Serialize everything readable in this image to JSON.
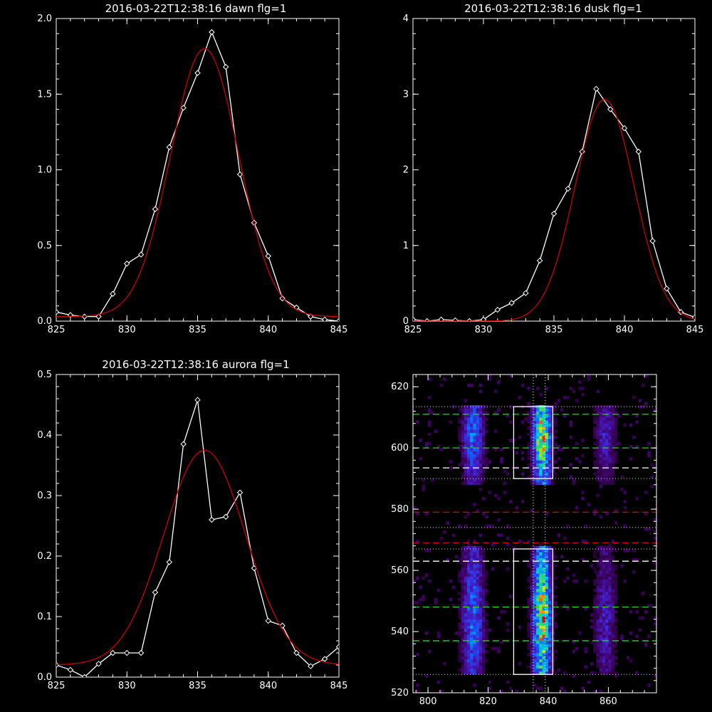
{
  "chart_data": [
    {
      "type": "line",
      "title": "2016-03-22T12:38:16 dawn flg=1",
      "xlim": [
        825,
        845
      ],
      "ylim": [
        0,
        2.0
      ],
      "xticks": [
        "825",
        "830",
        "835",
        "840",
        "845"
      ],
      "yticks": [
        "0.0",
        "0.5",
        "1.0",
        "1.5",
        "2.0"
      ],
      "grid": false,
      "series": [
        {
          "color": "#ffffff",
          "marker": "diamond",
          "x": [
            825,
            826,
            827,
            828,
            829,
            830,
            831,
            832,
            833,
            834,
            835,
            836,
            837,
            838,
            839,
            840,
            841,
            842,
            843,
            844,
            845
          ],
          "y": [
            0.06,
            0.04,
            0.03,
            0.03,
            0.18,
            0.38,
            0.44,
            0.74,
            1.15,
            1.41,
            1.64,
            1.91,
            1.68,
            0.97,
            0.65,
            0.43,
            0.15,
            0.09,
            0.03,
            0.01,
            0.0
          ]
        },
        {
          "color": "#cc0000",
          "fit": "gaussian",
          "center": 835.5,
          "sigma": 2.4,
          "amplitude": 1.77,
          "offset": 0.03
        }
      ]
    },
    {
      "type": "line",
      "title": "2016-03-22T12:38:16 dusk flg=1",
      "xlim": [
        825,
        845
      ],
      "ylim": [
        0,
        4
      ],
      "xticks": [
        "825",
        "830",
        "835",
        "840",
        "845"
      ],
      "yticks": [
        "0",
        "1",
        "2",
        "3",
        "4"
      ],
      "grid": false,
      "series": [
        {
          "color": "#ffffff",
          "marker": "diamond",
          "x": [
            825,
            826,
            827,
            828,
            829,
            830,
            831,
            832,
            833,
            834,
            835,
            836,
            837,
            838,
            839,
            840,
            841,
            842,
            843,
            844,
            845
          ],
          "y": [
            0.02,
            0.0,
            0.02,
            0.01,
            0.0,
            0.02,
            0.15,
            0.24,
            0.37,
            0.8,
            1.42,
            1.75,
            2.24,
            3.07,
            2.8,
            2.55,
            2.24,
            1.06,
            0.43,
            0.12,
            0.05
          ]
        },
        {
          "color": "#cc0000",
          "fit": "gaussian",
          "center": 838.6,
          "sigma": 2.1,
          "amplitude": 2.93,
          "offset": 0.0
        }
      ]
    },
    {
      "type": "line",
      "title": "2016-03-22T12:38:16 aurora flg=1",
      "xlim": [
        825,
        845
      ],
      "ylim": [
        0,
        0.5
      ],
      "xticks": [
        "825",
        "830",
        "835",
        "840",
        "845"
      ],
      "yticks": [
        "0.0",
        "0.1",
        "0.2",
        "0.3",
        "0.4",
        "0.5"
      ],
      "grid": false,
      "series": [
        {
          "color": "#ffffff",
          "marker": "diamond",
          "x": [
            825,
            826,
            827,
            828,
            829,
            830,
            831,
            832,
            833,
            834,
            835,
            836,
            837,
            838,
            839,
            840,
            841,
            842,
            843,
            844,
            845
          ],
          "y": [
            0.02,
            0.012,
            0.0,
            0.022,
            0.04,
            0.04,
            0.04,
            0.14,
            0.19,
            0.385,
            0.458,
            0.26,
            0.265,
            0.305,
            0.18,
            0.093,
            0.085,
            0.04,
            0.018,
            0.03,
            0.05
          ]
        },
        {
          "color": "#cc0000",
          "fit": "gaussian",
          "center": 835.5,
          "sigma": 2.9,
          "amplitude": 0.355,
          "offset": 0.02
        }
      ]
    },
    {
      "type": "heatmap",
      "title": "",
      "xlim": [
        795,
        876
      ],
      "ylim": [
        520,
        624
      ],
      "xticks": [
        "800",
        "820",
        "840",
        "860"
      ],
      "yticks": [
        "520",
        "540",
        "560",
        "580",
        "600",
        "620"
      ],
      "colormap": "rainbow",
      "grid": false,
      "emission_columns": [
        {
          "center": 815,
          "width": 6,
          "strength": 0.55
        },
        {
          "center": 838,
          "width": 5,
          "strength": 1.0
        },
        {
          "center": 859,
          "width": 6,
          "strength": 0.35
        }
      ],
      "emission_rows": [
        {
          "y_low": 526,
          "y_high": 568,
          "peak": 544
        },
        {
          "y_low": 588,
          "y_high": 614,
          "peak": 604
        }
      ],
      "boxes": [
        {
          "x": [
            828.5,
            841.5
          ],
          "y": [
            526,
            567
          ],
          "color": "#ffffff"
        },
        {
          "x": [
            828.5,
            841.5
          ],
          "y": [
            590,
            613.5
          ],
          "color": "#ffffff"
        }
      ],
      "vertical_lines": [
        {
          "x": 835,
          "color": "#ffffff",
          "style": "dotted"
        },
        {
          "x": 839,
          "color": "#ffffff",
          "style": "dotted"
        }
      ],
      "horizontal_lines": [
        {
          "y": 537,
          "color": "#33cc33",
          "style": "dashed"
        },
        {
          "y": 548,
          "color": "#33cc33",
          "style": "dashed"
        },
        {
          "y": 600,
          "color": "#33cc33",
          "style": "dashed"
        },
        {
          "y": 611,
          "color": "#33cc33",
          "style": "dashed"
        },
        {
          "y": 563,
          "color": "#ffffff",
          "style": "dashed"
        },
        {
          "y": 593.5,
          "color": "#ffffff",
          "style": "dashed"
        },
        {
          "y": 569,
          "color": "#cc0000",
          "style": "dashed"
        },
        {
          "y": 579,
          "color": "#cc0000",
          "style": "dashed"
        },
        {
          "y": 526,
          "color": "#dddddd",
          "style": "dotted"
        },
        {
          "y": 567,
          "color": "#dddddd",
          "style": "dotted"
        },
        {
          "y": 574,
          "color": "#dddddd",
          "style": "dotted"
        },
        {
          "y": 590,
          "color": "#dddddd",
          "style": "dotted"
        },
        {
          "y": 613.5,
          "color": "#dddddd",
          "style": "dotted"
        }
      ]
    }
  ]
}
